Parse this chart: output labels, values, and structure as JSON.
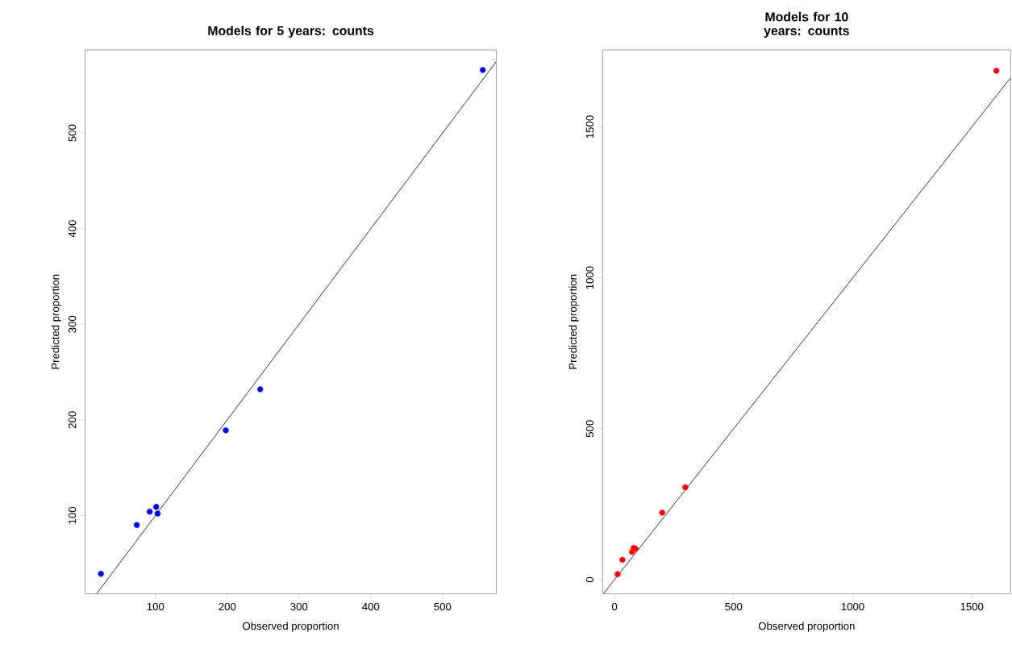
{
  "chart_data": [
    {
      "type": "scatter",
      "title": "Models for 5 years: counts",
      "xlabel": "Observed proportion",
      "ylabel": "Predicted proportion",
      "xlim": [
        2,
        575
      ],
      "ylim": [
        18,
        587
      ],
      "xticks": [
        100,
        200,
        300,
        400,
        500
      ],
      "yticks": [
        100,
        200,
        300,
        400,
        500
      ],
      "series": [
        {
          "marker": "circle",
          "color": "#0000ff",
          "x": [
            24,
            74,
            92,
            101,
            103,
            198,
            246,
            556
          ],
          "values": [
            39,
            90,
            104,
            109,
            102,
            189,
            232,
            566
          ]
        },
        {
          "type": "line",
          "color": "#000000",
          "line_style": "solid",
          "x": [
            18,
            575
          ],
          "values": [
            18,
            575
          ]
        }
      ]
    },
    {
      "type": "scatter",
      "title": "Models for 10 years: counts",
      "xlabel": "Observed proportion",
      "ylabel": "Predicted proportion",
      "xlim": [
        -50,
        1663
      ],
      "ylim": [
        -47,
        1755
      ],
      "xticks": [
        0,
        500,
        1000,
        1500
      ],
      "yticks": [
        0,
        500,
        1000,
        1500
      ],
      "series": [
        {
          "marker": "circle",
          "color": "#ff0000",
          "x": [
            13,
            33,
            73,
            80,
            87,
            200,
            297,
            1603
          ],
          "values": [
            18,
            66,
            92,
            105,
            103,
            222,
            306,
            1686
          ]
        },
        {
          "type": "line",
          "color": "#000000",
          "line_style": "solid",
          "x": [
            -47,
            1663
          ],
          "values": [
            -47,
            1663
          ]
        }
      ]
    }
  ]
}
